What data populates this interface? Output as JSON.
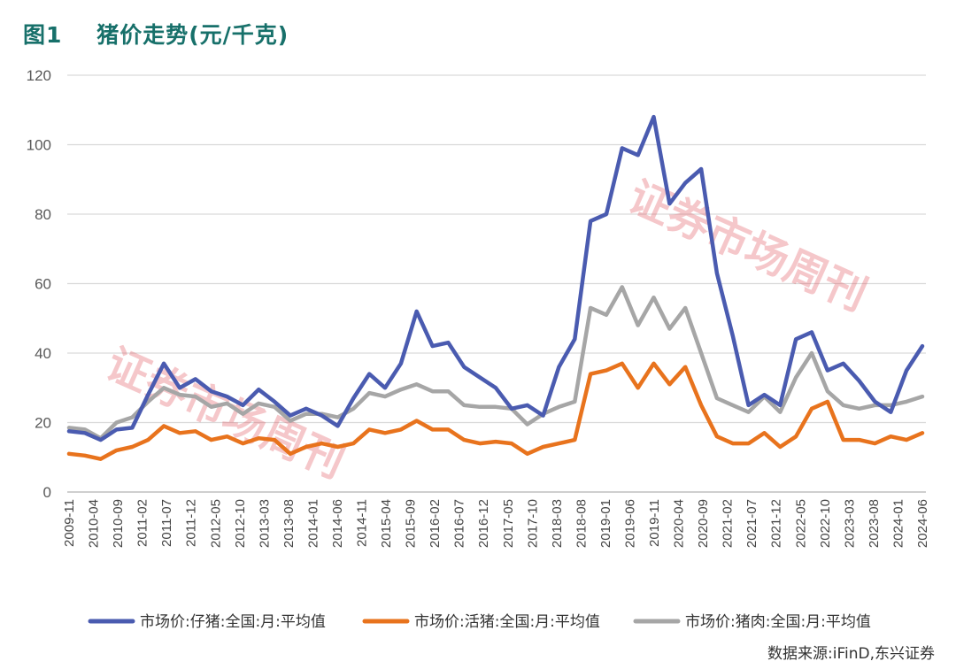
{
  "figure": {
    "title": "图1    猪价走势(元/千克)",
    "source": "数据来源:iFinD,东兴证券",
    "watermark": "证券市场周刊"
  },
  "chart_data": {
    "type": "line",
    "title": "猪价走势(元/千克)",
    "xlabel": "",
    "ylabel": "",
    "ylim": [
      0,
      120
    ],
    "yticks": [
      0,
      20,
      40,
      60,
      80,
      100,
      120
    ],
    "grid": true,
    "legend_position": "bottom",
    "x_tick_labels": [
      "2009-11",
      "2010-04",
      "2010-09",
      "2011-02",
      "2011-07",
      "2011-12",
      "2012-05",
      "2012-10",
      "2013-03",
      "2013-08",
      "2014-01",
      "2014-06",
      "2014-11",
      "2015-04",
      "2015-09",
      "2016-02",
      "2016-07",
      "2016-12",
      "2017-05",
      "2017-10",
      "2018-03",
      "2018-08",
      "2019-01",
      "2019-06",
      "2019-11",
      "2020-04",
      "2020-09",
      "2021-02",
      "2021-07",
      "2021-12",
      "2022-05",
      "2022-10",
      "2023-03",
      "2023-08",
      "2024-01",
      "2024-06"
    ],
    "series": [
      {
        "name": "市场价:仔猪:全国:月:平均值",
        "color": "#4a5bb0",
        "values": [
          17.5,
          17,
          15,
          18,
          18.5,
          28,
          37,
          30,
          32.5,
          29,
          27.5,
          25,
          29.5,
          26,
          22,
          24,
          22,
          19,
          27,
          34,
          30,
          37,
          52,
          42,
          43,
          36,
          33,
          30,
          24,
          25,
          22,
          36,
          44,
          78,
          80,
          99,
          97,
          108,
          83,
          89,
          93,
          63,
          45,
          25,
          28,
          25,
          44,
          46,
          35,
          37,
          32,
          26,
          23,
          35,
          42
        ]
      },
      {
        "name": "市场价:活猪:全国:月:平均值",
        "color": "#e8731d",
        "values": [
          11,
          10.5,
          9.5,
          12,
          13,
          15,
          19,
          17,
          17.5,
          15,
          16,
          14,
          15.5,
          15,
          11,
          13,
          14,
          13,
          14,
          18,
          17,
          18,
          20.5,
          18,
          18,
          15,
          14,
          14.5,
          14,
          11,
          13,
          14,
          15,
          34,
          35,
          37,
          30,
          37,
          31,
          36,
          25,
          16,
          14,
          14,
          17,
          13,
          16,
          24,
          26,
          15,
          15,
          14,
          16,
          15,
          17
        ]
      },
      {
        "name": "市场价:猪肉:全国:月:平均值",
        "color": "#a6a6a6",
        "values": [
          18.5,
          18,
          15.5,
          20,
          21.5,
          26,
          30,
          28,
          27.5,
          24.5,
          25.5,
          22.5,
          25.5,
          24.5,
          20.5,
          22.5,
          22.5,
          21.5,
          24,
          28.5,
          27.5,
          29.5,
          31,
          29,
          29,
          25,
          24.5,
          24.5,
          24,
          19.5,
          22.5,
          24.5,
          26,
          53,
          51,
          59,
          48,
          56,
          47,
          53,
          40,
          27,
          25,
          23,
          27.5,
          23,
          33,
          40,
          29,
          25,
          24,
          25,
          25,
          26,
          27.5
        ]
      }
    ]
  }
}
